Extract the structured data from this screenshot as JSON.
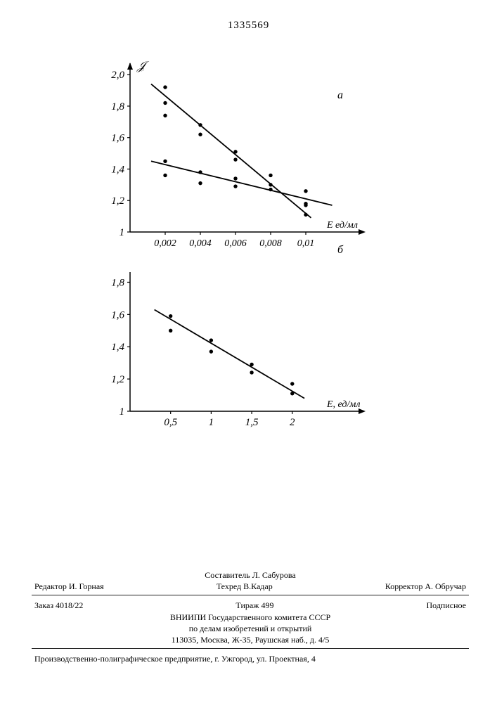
{
  "doc_number": "1335569",
  "chart_a": {
    "type": "scatter+line",
    "panel_label": "а",
    "x_label": "Е ед/мл",
    "y_label": "𝒥",
    "x_ticks": [
      "0,002",
      "0,004",
      "0,006",
      "0,008",
      "0,01"
    ],
    "y_ticks": [
      "1",
      "1,2",
      "1,4",
      "1,6",
      "1,8",
      "2,0"
    ],
    "x_domain": [
      0,
      0.012
    ],
    "y_domain": [
      1,
      2.05
    ],
    "line_color": "#000000",
    "point_color": "#000000",
    "point_r": 2.7,
    "line_width": 1.8,
    "series1_line": {
      "x": [
        0.0012,
        0.0103
      ],
      "y": [
        1.94,
        1.09
      ]
    },
    "series1_points": [
      {
        "x": 0.002,
        "y": 1.92
      },
      {
        "x": 0.002,
        "y": 1.82
      },
      {
        "x": 0.002,
        "y": 1.74
      },
      {
        "x": 0.004,
        "y": 1.68
      },
      {
        "x": 0.004,
        "y": 1.62
      },
      {
        "x": 0.006,
        "y": 1.51
      },
      {
        "x": 0.006,
        "y": 1.46
      },
      {
        "x": 0.008,
        "y": 1.36
      },
      {
        "x": 0.008,
        "y": 1.3
      },
      {
        "x": 0.01,
        "y": 1.17
      },
      {
        "x": 0.01,
        "y": 1.11
      }
    ],
    "series2_line": {
      "x": [
        0.0012,
        0.0115
      ],
      "y": [
        1.45,
        1.17
      ]
    },
    "series2_points": [
      {
        "x": 0.002,
        "y": 1.45
      },
      {
        "x": 0.002,
        "y": 1.36
      },
      {
        "x": 0.004,
        "y": 1.38
      },
      {
        "x": 0.004,
        "y": 1.31
      },
      {
        "x": 0.006,
        "y": 1.34
      },
      {
        "x": 0.006,
        "y": 1.29
      },
      {
        "x": 0.008,
        "y": 1.27
      },
      {
        "x": 0.01,
        "y": 1.26
      },
      {
        "x": 0.01,
        "y": 1.18
      }
    ]
  },
  "chart_b": {
    "type": "scatter+line",
    "panel_label": "б",
    "x_label": "E, ед/мл",
    "x_ticks": [
      "0,5",
      "1",
      "1,5",
      "2"
    ],
    "y_ticks": [
      "1",
      "1,2",
      "1,4",
      "1,6",
      "1,8"
    ],
    "x_domain": [
      0,
      2.6
    ],
    "y_domain": [
      1,
      1.85
    ],
    "line_color": "#000000",
    "point_color": "#000000",
    "point_r": 2.7,
    "line_width": 1.8,
    "series_line": {
      "x": [
        0.3,
        2.15
      ],
      "y": [
        1.63,
        1.08
      ]
    },
    "series_points": [
      {
        "x": 0.5,
        "y": 1.59
      },
      {
        "x": 0.5,
        "y": 1.5
      },
      {
        "x": 1.0,
        "y": 1.44
      },
      {
        "x": 1.0,
        "y": 1.37
      },
      {
        "x": 1.5,
        "y": 1.29
      },
      {
        "x": 1.5,
        "y": 1.24
      },
      {
        "x": 2.0,
        "y": 1.17
      },
      {
        "x": 2.0,
        "y": 1.11
      }
    ]
  },
  "footer": {
    "composer": "Составитель Л. Сабурова",
    "editor": "Редактор И. Горная",
    "techred": "Техред В.Кадар",
    "corrector": "Корректор А. Обручар",
    "order": "Заказ 4018/22",
    "print_run": "Тираж 499",
    "subscription": "Подписное",
    "org_line1": "ВНИИПИ Государственного комитета СССР",
    "org_line2": "по делам изобретений и открытий",
    "address": "113035, Москва, Ж-35, Раушская наб., д. 4/5",
    "printing": "Производственно-полиграфическое предприятие, г.  Ужгород, ул. Проектная, 4"
  }
}
